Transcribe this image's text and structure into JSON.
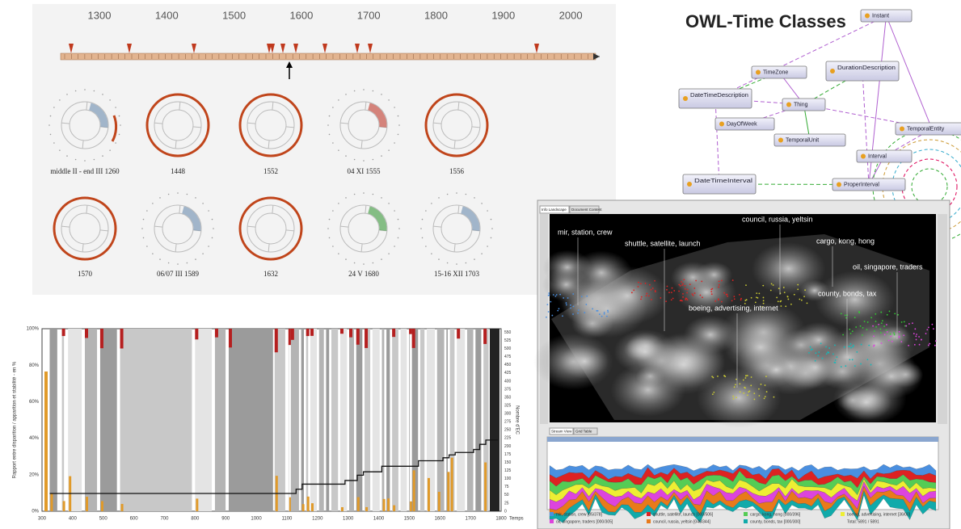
{
  "timeline": {
    "years": [
      "1300",
      "1400",
      "1500",
      "1600",
      "1700",
      "1800",
      "1900",
      "2000"
    ],
    "labels": [
      "middle II - end III 1260",
      "1448",
      "1552",
      "04 XI 1555",
      "1556",
      "1570",
      "06/07 III 1589",
      "1632",
      "24 V 1680",
      "15-16 XII 1703"
    ]
  },
  "owl": {
    "title": "OWL-Time Classes",
    "nodes": [
      "Instant",
      "TimeZone",
      "DurationDescription",
      "DateTimeDescription",
      "Thing",
      "DayOfWeek",
      "TemporalEntity",
      "TemporalUnit",
      "Interval",
      "DateTimeInterval",
      "ProperInterval"
    ]
  },
  "history_chart": {
    "y_left_title": "Rapport entre disparition / apparition et stabilité - en %",
    "y_right_title": "Nombre d'EC",
    "y_left_ticks": [
      "0%",
      "20%",
      "40%",
      "60%",
      "80%",
      "100%"
    ],
    "y_right_ticks": [
      "0",
      "25",
      "50",
      "75",
      "100",
      "125",
      "150",
      "175",
      "200",
      "225",
      "250",
      "275",
      "300",
      "325",
      "350",
      "375",
      "400",
      "425",
      "450",
      "475",
      "500",
      "525",
      "550"
    ],
    "x_ticks": [
      "300",
      "400",
      "500",
      "600",
      "700",
      "800",
      "900",
      "1000",
      "1100",
      "1200",
      "1300",
      "1400",
      "1500",
      "1600",
      "1700",
      "1800"
    ],
    "x_title": "Temps"
  },
  "landscape": {
    "tabs": [
      "Info Landscape",
      "Document Content"
    ],
    "topics": [
      "mir, station, crew",
      "shuttle, satellite, launch",
      "council, russia, yeltsin",
      "cargo, kong, hong",
      "oil, singapore, traders",
      "county, bonds, tax",
      "boeing, advertising, internet"
    ],
    "stream_tabs": [
      "Stream View",
      "Grid Table"
    ],
    "legend": [
      "mir, station, crew [05/378]",
      "shuttle, satellite, launch [000/506]",
      "cargo, kong, hong [000/396]",
      "boeing, advertising, internet [36/00]",
      "oil, singapore, traders [000/305]",
      "council, russia, yeltsin [046/344]",
      "county, bonds, tax [000/300]",
      "Total: 5891 / 5891"
    ]
  }
}
